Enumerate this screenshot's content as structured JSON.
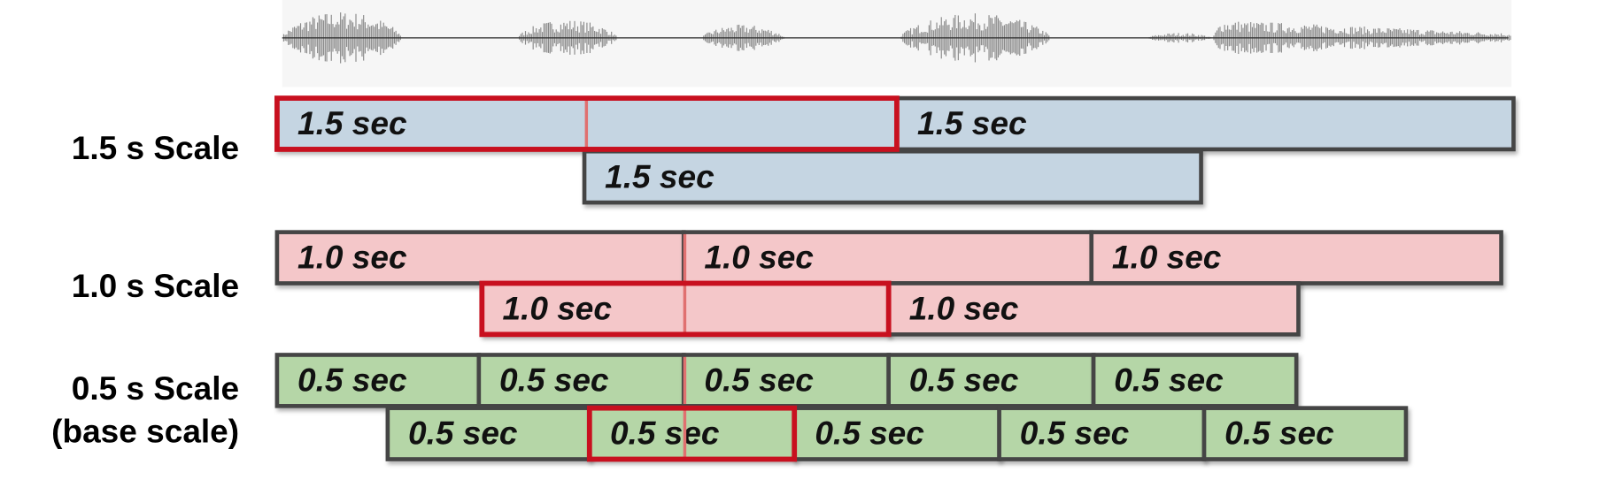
{
  "scales": [
    {
      "label_lines": [
        "1.5 s Scale"
      ],
      "rows": [
        [
          "1.5 sec",
          "1.5 sec"
        ],
        [
          "1.5 sec"
        ]
      ]
    },
    {
      "label_lines": [
        "1.0 s Scale"
      ],
      "rows": [
        [
          "1.0 sec",
          "1.0 sec",
          "1.0 sec"
        ],
        [
          "1.0 sec",
          "1.0 sec"
        ]
      ]
    },
    {
      "label_lines": [
        "0.5 s Scale",
        "(base scale)"
      ],
      "rows": [
        [
          "0.5 sec",
          "0.5 sec",
          "0.5 sec",
          "0.5 sec",
          "0.5 sec"
        ],
        [
          "0.5 sec",
          "0.5 sec",
          "0.5 sec",
          "0.5 sec",
          "0.5 sec"
        ]
      ]
    }
  ]
}
